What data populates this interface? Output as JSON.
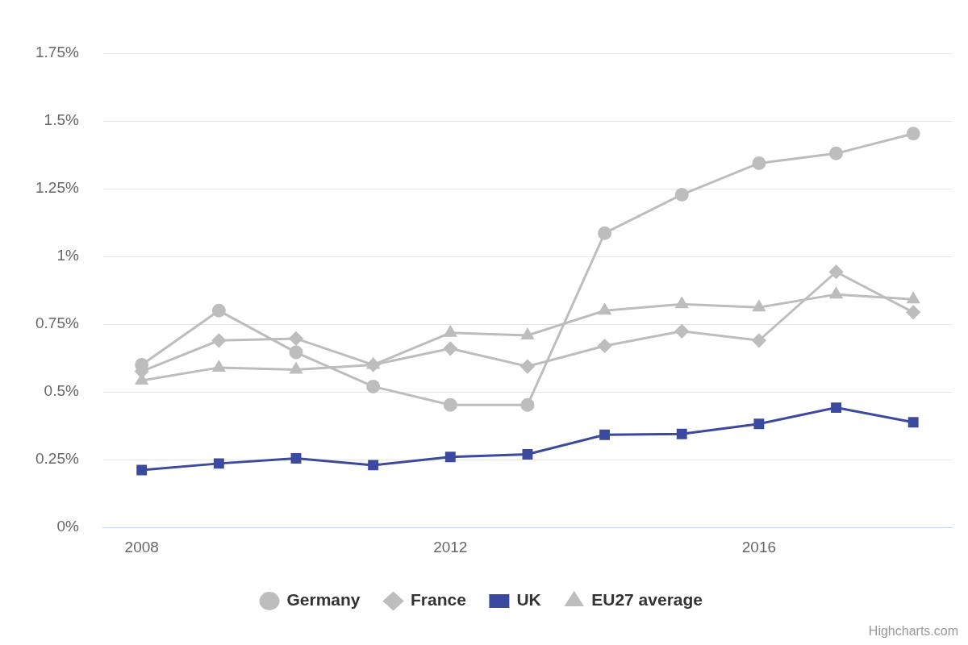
{
  "chart_data": {
    "type": "line",
    "categories": [
      "2008",
      null,
      null,
      null,
      "2012",
      null,
      null,
      null,
      "2016",
      null,
      null
    ],
    "series": [
      {
        "name": "Germany",
        "color": "#bdbdbd",
        "marker": "circle",
        "line_style": "solid",
        "values": [
          0.6,
          0.8,
          0.646,
          0.52,
          0.452,
          0.452,
          1.086,
          1.228,
          1.344,
          1.38,
          1.453
        ]
      },
      {
        "name": "France",
        "color": "#bdbdbd",
        "marker": "diamond",
        "line_style": "solid",
        "values": [
          0.576,
          0.69,
          0.697,
          0.6,
          0.66,
          0.594,
          0.67,
          0.724,
          0.69,
          0.943,
          0.794
        ]
      },
      {
        "name": "UK",
        "color": "#3b4a9e",
        "marker": "square",
        "line_style": "solid",
        "values": [
          0.212,
          0.236,
          0.255,
          0.23,
          0.26,
          0.27,
          0.342,
          0.345,
          0.382,
          0.442,
          0.388
        ]
      },
      {
        "name": "EU27 average",
        "color": "#bdbdbd",
        "marker": "triangle",
        "line_style": "solid",
        "values": [
          0.542,
          0.59,
          0.582,
          0.6,
          0.718,
          0.709,
          0.8,
          0.824,
          0.812,
          0.86,
          0.842
        ]
      }
    ],
    "ylim": [
      0,
      1.75
    ],
    "yticks": [
      {
        "value": 0,
        "label": "0%"
      },
      {
        "value": 0.25,
        "label": "0.25%"
      },
      {
        "value": 0.5,
        "label": "0.5%"
      },
      {
        "value": 0.75,
        "label": "0.75%"
      },
      {
        "value": 1,
        "label": "1%"
      },
      {
        "value": 1.25,
        "label": "1.25%"
      },
      {
        "value": 1.5,
        "label": "1.5%"
      },
      {
        "value": 1.75,
        "label": "1.75%"
      }
    ],
    "grid": true,
    "legend": "bottom",
    "annotation": "Highcharts.com"
  }
}
